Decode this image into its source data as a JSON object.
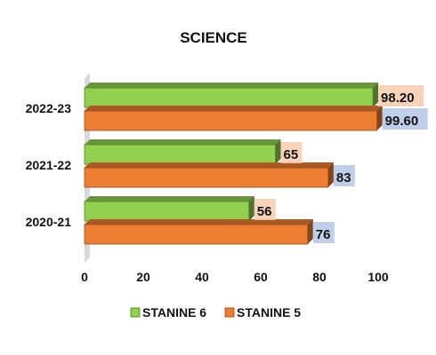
{
  "chart_data": {
    "type": "bar",
    "orientation": "horizontal",
    "three_d": true,
    "title": "SCIENCE",
    "categories": [
      "2022-23",
      "2021-22",
      "2020-21"
    ],
    "series": [
      {
        "name": "STANINE 6",
        "values": [
          98.2,
          65,
          56
        ],
        "labels": [
          "98.20",
          "65",
          "56"
        ],
        "color": "#92D050",
        "label_bg": "#F8CBAD"
      },
      {
        "name": "STANINE 5",
        "values": [
          99.6,
          83,
          76
        ],
        "labels": [
          "99.60",
          "83",
          "76"
        ],
        "color": "#ED7D31",
        "label_bg": "#B4C7E7"
      }
    ],
    "xlim": [
      0,
      100
    ],
    "xticks": [
      "0",
      "20",
      "40",
      "60",
      "80",
      "100"
    ],
    "grid": false,
    "legend_position": "bottom"
  }
}
